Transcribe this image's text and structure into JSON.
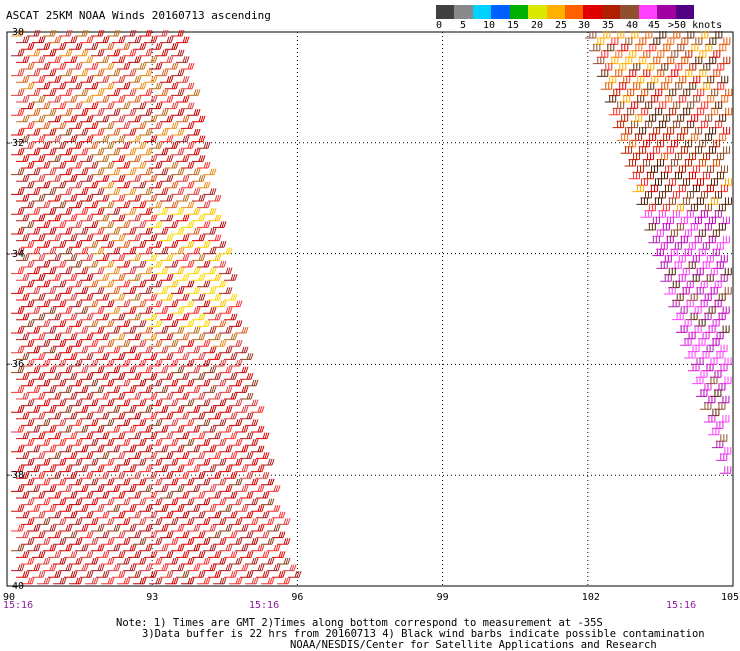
{
  "title": "ASCAT 25KM NOAA Winds 20160713 ascending",
  "legend": {
    "colors": [
      "#404040",
      "#8a8a8a",
      "#00d2ff",
      "#0060ff",
      "#00b000",
      "#d8e800",
      "#ffb000",
      "#ff6000",
      "#e00000",
      "#b02000",
      "#905030",
      "#ff40ff",
      "#a000a0",
      "#500080"
    ],
    "labels": [
      "0",
      "5",
      "10",
      "15",
      "20",
      "25",
      "30",
      "35",
      "40",
      "45",
      ">50 knots"
    ]
  },
  "axes": {
    "lon_labels": [
      "90",
      "93",
      "96",
      "99",
      "102",
      "105"
    ],
    "lat_labels": [
      "-30",
      "-32",
      "-34",
      "-36",
      "-38",
      "-40"
    ]
  },
  "time_labels": [
    "15:16",
    "15:16",
    "15:16"
  ],
  "notes": {
    "line1": "Note: 1) Times are GMT 2)Times along bottom correspond to measurement at -35S",
    "line2": "3)Data buffer is 22 hrs from 20160713 4) Black wind barbs indicate possible contamination",
    "line3": "NOAA/NESDIS/Center for Satellite Applications and Research"
  }
}
